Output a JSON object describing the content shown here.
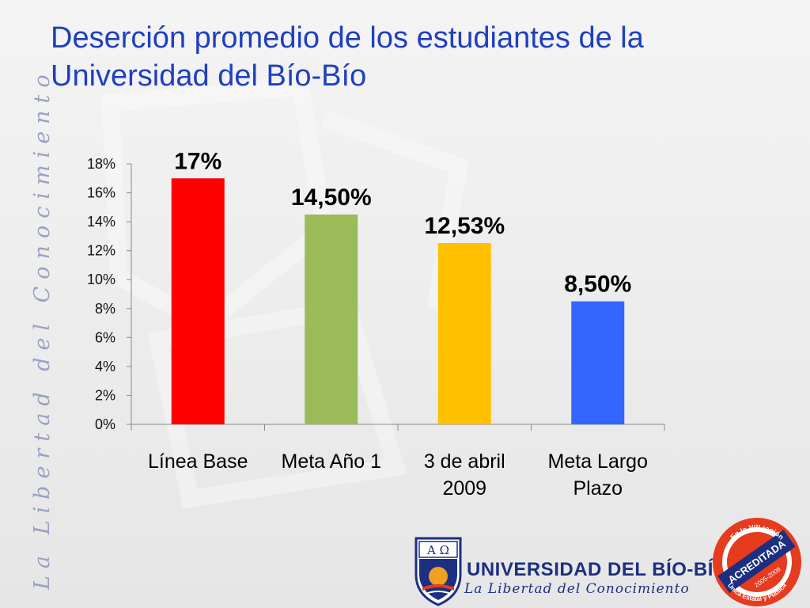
{
  "slide": {
    "title": "Deserción promedio de los estudiantes de la Universidad del Bío-Bío",
    "side_motto": "La Libertad del Conocimiento"
  },
  "footer": {
    "university_name": "UNIVERSIDAD DEL BÍO-BÍO",
    "university_motto": "La Libertad del Conocimiento",
    "crest_letters": "A Ω",
    "seal": {
      "top_text": "En la VIII región",
      "band_text": "ACREDITADA",
      "years_text": "2005-2009",
      "bottom_text": "Única Estatal y Pública"
    }
  },
  "colors": {
    "title": "#1f3fc0",
    "bar_linea_base": "#ff0000",
    "bar_meta_ano_1": "#9bbb59",
    "bar_3_abril": "#ffc000",
    "bar_meta_largo": "#3366ff",
    "brand_blue": "#1c2f80",
    "seal_red": "#e63b1e"
  },
  "chart_data": {
    "type": "bar",
    "categories": [
      "Línea Base",
      "Meta Año 1",
      "3 de abril 2009",
      "Meta Largo Plazo"
    ],
    "category_lines": [
      [
        "Línea Base"
      ],
      [
        "Meta Año 1"
      ],
      [
        "3 de abril",
        "2009"
      ],
      [
        "Meta Largo",
        "Plazo"
      ]
    ],
    "values": [
      17,
      14.5,
      12.53,
      8.5
    ],
    "data_labels": [
      "17%",
      "14,50%",
      "12,53%",
      "8,50%"
    ],
    "bar_colors": [
      "#ff0000",
      "#9bbb59",
      "#ffc000",
      "#3366ff"
    ],
    "ylim": [
      0,
      18
    ],
    "yticks": [
      0,
      2,
      4,
      6,
      8,
      10,
      12,
      14,
      16,
      18
    ],
    "ytick_labels": [
      "0%",
      "2%",
      "4%",
      "6%",
      "8%",
      "10%",
      "12%",
      "14%",
      "16%",
      "18%"
    ],
    "title": "",
    "xlabel": "",
    "ylabel": "",
    "grid": false,
    "legend": "none"
  }
}
